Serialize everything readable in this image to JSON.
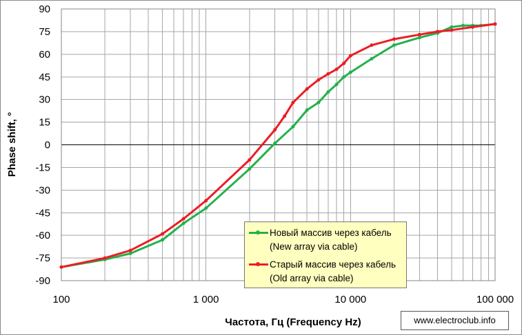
{
  "chart_data": {
    "type": "line",
    "xlabel": "Частота, Гц (Frequency Hz)",
    "ylabel": "Phase shift, °",
    "x_scale": "log",
    "xlim": [
      100,
      100000
    ],
    "ylim": [
      -90,
      90
    ],
    "x_ticks": [
      "100",
      "1 000",
      "10 000",
      "100 000"
    ],
    "y_ticks": [
      "90",
      "75",
      "60",
      "45",
      "30",
      "15",
      "0",
      "-15",
      "-30",
      "-45",
      "-60",
      "-75",
      "-90"
    ],
    "grid": true,
    "legend_position": "bottom-right",
    "series": [
      {
        "name": "Новый массив через кабель",
        "name_en": "(New array via cable)",
        "color": "#22b14c",
        "x": [
          100,
          200,
          300,
          500,
          700,
          1000,
          2000,
          3000,
          4000,
          5000,
          6000,
          7000,
          8000,
          9000,
          10000,
          14000,
          20000,
          30000,
          40000,
          50000,
          60000,
          70000,
          80000,
          100000
        ],
        "y": [
          -81,
          -76,
          -72,
          -63,
          -52,
          -42,
          -16,
          1,
          12,
          23,
          28,
          35,
          40,
          45,
          48,
          57,
          66,
          71,
          74,
          78,
          79,
          79,
          79,
          80
        ]
      },
      {
        "name": "Старый массив через кабель",
        "name_en": "(Old array via cable)",
        "color": "#ed1c24",
        "x": [
          100,
          200,
          300,
          500,
          700,
          1000,
          2000,
          3000,
          3500,
          4000,
          5000,
          6000,
          7000,
          8000,
          9000,
          10000,
          14000,
          20000,
          30000,
          40000,
          50000,
          70000,
          100000
        ],
        "y": [
          -81,
          -75,
          -70,
          -59,
          -49,
          -37,
          -10,
          10,
          19,
          28,
          37,
          43,
          47,
          50,
          54,
          59,
          66,
          70,
          73,
          75,
          76,
          78,
          80
        ]
      }
    ]
  },
  "watermark": "www.electroclub.info"
}
